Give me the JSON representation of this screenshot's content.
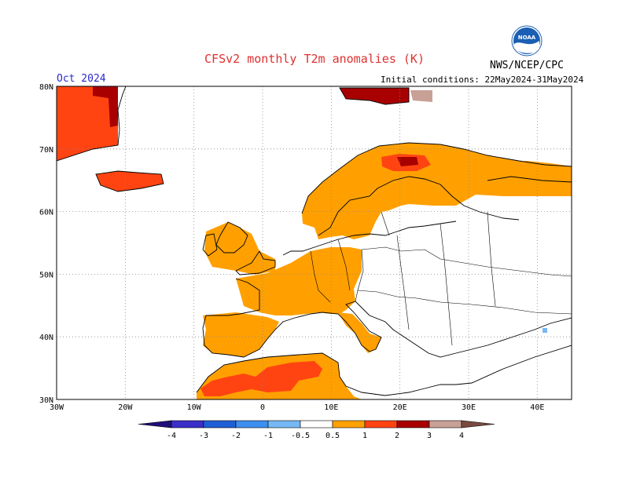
{
  "header": {
    "title": "CFSv2 monthly T2m anomalies (K)",
    "agency": "NWS/NCEP/CPC",
    "month": "Oct 2024",
    "initial_conditions": "Initial conditions: 22May2024-31May2024"
  },
  "logo": {
    "text": "NOAA",
    "colors": {
      "sky": "#1a5fb4",
      "wave": "#ffffff"
    }
  },
  "axes": {
    "lon_labels": [
      "30W",
      "20W",
      "10W",
      "0",
      "10E",
      "20E",
      "30E",
      "40E"
    ],
    "lat_labels": [
      "30N",
      "40N",
      "50N",
      "60N",
      "70N",
      "80N"
    ],
    "lon_range": [
      -30,
      45
    ],
    "lat_range": [
      30,
      80
    ],
    "grid": "dotted"
  },
  "colorbar": {
    "labels": [
      "-4",
      "-3",
      "-2",
      "-1",
      "-0.5",
      "0.5",
      "1",
      "2",
      "3",
      "4"
    ],
    "colors": [
      "#1e0f7a",
      "#3a2fc8",
      "#1f5fd6",
      "#3d8ff0",
      "#76b8f5",
      "#ffffff",
      "#ffa000",
      "#ff4412",
      "#a80000",
      "#c8a096",
      "#7a4a40"
    ]
  },
  "anomaly_colors": {
    "warm1": "#ffa000",
    "warm2": "#ff4412",
    "warm3": "#a80000",
    "warm4": "#c8a096",
    "cool1": "#76b8f5"
  }
}
